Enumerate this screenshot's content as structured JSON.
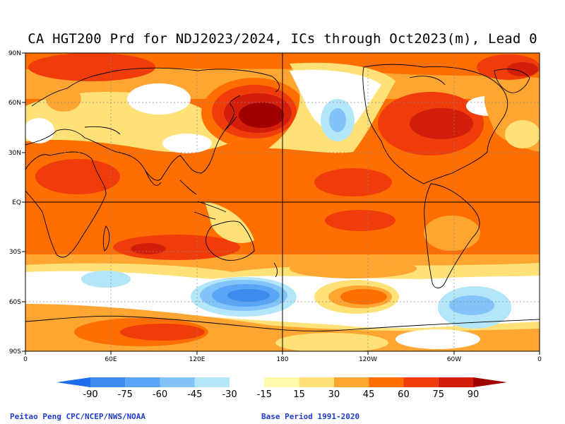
{
  "title": "CA HGT200 Prd for NDJ2023/2024, ICs through Oct2023(m), Lead 0",
  "latitude_labels": [
    "90N",
    "60N",
    "30N",
    "EQ",
    "30S",
    "60S",
    "90S"
  ],
  "longitude_labels": [
    "0",
    "60E",
    "120E",
    "180",
    "120W",
    "60W",
    "0"
  ],
  "colorbar": {
    "tick_labels": [
      "-90",
      "-75",
      "-60",
      "-45",
      "-30",
      "-15",
      "15",
      "30",
      "45",
      "60",
      "75",
      "90"
    ],
    "colors": [
      "#1e6eeb",
      "#3c8cf0",
      "#5aa5f5",
      "#82c3fa",
      "#b4e6fa",
      "#ffffff",
      "#fffaaa",
      "#ffe178",
      "#ffa532",
      "#ff6e00",
      "#f03c0a",
      "#d21e0a",
      "#a00000"
    ]
  },
  "footer": {
    "credit": "Peitao Peng CPC/NCEP/NWS/NOAA",
    "base_period": "Base Period 1991-2020"
  }
}
